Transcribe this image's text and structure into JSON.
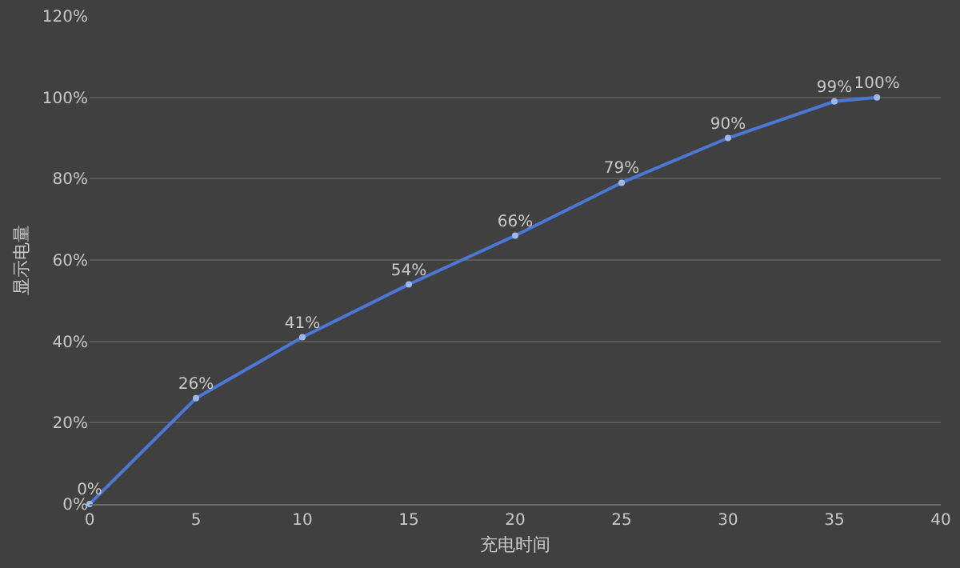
{
  "chart_data": {
    "type": "line",
    "xlabel": "充电时间",
    "ylabel": "显示电量",
    "x": [
      0,
      5,
      10,
      15,
      20,
      25,
      30,
      35,
      37
    ],
    "series": [
      {
        "color": "#4a78d4",
        "values": [
          0,
          26,
          41,
          54,
          66,
          79,
          90,
          99,
          100
        ],
        "value_labels": [
          "0%",
          "26%",
          "41%",
          "54%",
          "66%",
          "79%",
          "90%",
          "99%",
          "100%"
        ]
      }
    ],
    "xlim": [
      0,
      40
    ],
    "xticks": [
      0,
      5,
      10,
      15,
      20,
      25,
      30,
      35,
      40
    ],
    "ylim": [
      0,
      120
    ],
    "yticks": [
      {
        "value": 0,
        "label": "0%"
      },
      {
        "value": 20,
        "label": "20%"
      },
      {
        "value": 40,
        "label": "40%"
      },
      {
        "value": 60,
        "label": "60%"
      },
      {
        "value": 80,
        "label": "80%"
      },
      {
        "value": 100,
        "label": "100%"
      },
      {
        "value": 120,
        "label": "120%"
      }
    ],
    "grid": "y",
    "marker": "circle",
    "line_style": "solid"
  }
}
